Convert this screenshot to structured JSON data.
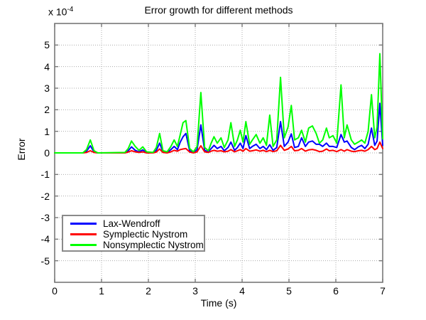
{
  "figure": {
    "title": "Error growth for different methods",
    "xlabel": "Time (s)",
    "ylabel": "Error",
    "y_multiplier_prefix": "x 10",
    "y_multiplier_exponent": "-4",
    "background_color": "#ffffff",
    "axis_color": "#787878",
    "grid_color": "#ababab"
  },
  "chart_data": {
    "type": "line",
    "title": "Error growth for different methods",
    "xlabel": "Time (s)",
    "ylabel": "Error",
    "y_unit_multiplier": "1e-4",
    "xlim": [
      0,
      7
    ],
    "ylim": [
      -6,
      6
    ],
    "x_ticks": [
      0,
      1,
      2,
      3,
      4,
      5,
      6,
      7
    ],
    "y_ticks": [
      -5,
      -4,
      -3,
      -2,
      -1,
      0,
      1,
      2,
      3,
      4,
      5
    ],
    "grid": true,
    "legend_location": "lower left",
    "x": [
      0,
      0.6,
      0.68,
      0.76,
      0.84,
      0.92,
      1.5,
      1.57,
      1.64,
      1.72,
      1.8,
      1.88,
      1.96,
      2.1,
      2.17,
      2.24,
      2.31,
      2.4,
      2.48,
      2.55,
      2.62,
      2.68,
      2.74,
      2.8,
      2.88,
      2.96,
      3.04,
      3.12,
      3.2,
      3.28,
      3.34,
      3.4,
      3.47,
      3.55,
      3.62,
      3.7,
      3.76,
      3.84,
      3.9,
      3.96,
      4.02,
      4.08,
      4.16,
      4.22,
      4.3,
      4.38,
      4.45,
      4.52,
      4.59,
      4.66,
      4.74,
      4.82,
      4.9,
      4.98,
      5.05,
      5.12,
      5.2,
      5.27,
      5.35,
      5.42,
      5.5,
      5.58,
      5.65,
      5.72,
      5.8,
      5.86,
      5.94,
      6.02,
      6.11,
      6.18,
      6.24,
      6.33,
      6.4,
      6.48,
      6.55,
      6.62,
      6.69,
      6.76,
      6.83,
      6.88,
      6.94,
      7
    ],
    "series": [
      {
        "name": "Lax-Wendroff",
        "color": "#0000ff",
        "values": [
          0,
          0,
          0.08,
          0.33,
          0.05,
          0,
          0,
          0.1,
          0.28,
          0.12,
          0.05,
          0.14,
          0.02,
          0,
          0.12,
          0.45,
          0.05,
          0.02,
          0.15,
          0.3,
          0.15,
          0.5,
          0.75,
          0.9,
          0.1,
          0.02,
          0.15,
          1.3,
          0.12,
          0.05,
          0.2,
          0.35,
          0.2,
          0.3,
          0.1,
          0.25,
          0.5,
          0.12,
          0.25,
          0.45,
          0.2,
          0.8,
          0.2,
          0.3,
          0.4,
          0.2,
          0.3,
          0.15,
          0.38,
          0.12,
          0.25,
          1.45,
          0.3,
          0.5,
          0.88,
          0.25,
          0.3,
          0.7,
          0.3,
          0.5,
          0.55,
          0.4,
          0.4,
          0.3,
          0.45,
          0.3,
          0.3,
          0.25,
          0.85,
          0.5,
          0.55,
          0.25,
          0.15,
          0.28,
          0.35,
          0.2,
          0.4,
          1.15,
          0.35,
          0.55,
          2.3,
          0.35
        ]
      },
      {
        "name": "Symplectic Nystrom",
        "color": "#ff0000",
        "values": [
          0,
          0,
          0.02,
          0.1,
          0.02,
          0,
          0,
          0.04,
          0.1,
          0.05,
          0.02,
          0.05,
          0,
          0,
          0.04,
          0.18,
          0.02,
          0,
          0.05,
          0.12,
          0.08,
          0.15,
          0.18,
          0.2,
          0.04,
          0,
          0.05,
          0.33,
          0.05,
          0.02,
          0.08,
          0.12,
          0.08,
          0.1,
          0.05,
          0.08,
          0.15,
          0.05,
          0.1,
          0.15,
          0.08,
          0.2,
          0.08,
          0.1,
          0.14,
          0.08,
          0.12,
          0.06,
          0.12,
          0.06,
          0.1,
          0.35,
          0.12,
          0.18,
          0.3,
          0.1,
          0.12,
          0.2,
          0.08,
          0.14,
          0.16,
          0.12,
          0.06,
          0.08,
          0.18,
          0.1,
          0.12,
          0.06,
          0.15,
          0.08,
          0.15,
          0.08,
          0.06,
          0.1,
          0.12,
          0.08,
          0.15,
          0.3,
          0.15,
          0.2,
          0.5,
          0.2
        ]
      },
      {
        "name": "Nonsymplectic Nystrom",
        "color": "#00ff00",
        "values": [
          0,
          0,
          0.15,
          0.6,
          0.1,
          0,
          0.02,
          0.2,
          0.55,
          0.3,
          0.12,
          0.28,
          0.05,
          0.02,
          0.25,
          0.9,
          0.1,
          0.05,
          0.3,
          0.6,
          0.3,
          0.85,
          1.4,
          1.5,
          0.2,
          0.05,
          0.3,
          2.8,
          0.25,
          0.1,
          0.45,
          0.75,
          0.45,
          0.7,
          0.25,
          0.6,
          1.4,
          0.3,
          0.6,
          1.05,
          0.5,
          1.45,
          0.4,
          0.6,
          0.85,
          0.45,
          0.7,
          0.35,
          1.75,
          0.3,
          0.6,
          3.5,
          0.7,
          1.2,
          2.2,
          0.6,
          0.7,
          1.05,
          0.5,
          1.15,
          1.25,
          0.9,
          0.45,
          0.6,
          1.15,
          0.7,
          0.8,
          0.45,
          3.15,
          0.7,
          1.3,
          0.6,
          0.4,
          0.5,
          0.6,
          0.45,
          1.0,
          2.7,
          0.7,
          1.2,
          4.6,
          0.65
        ]
      }
    ]
  }
}
